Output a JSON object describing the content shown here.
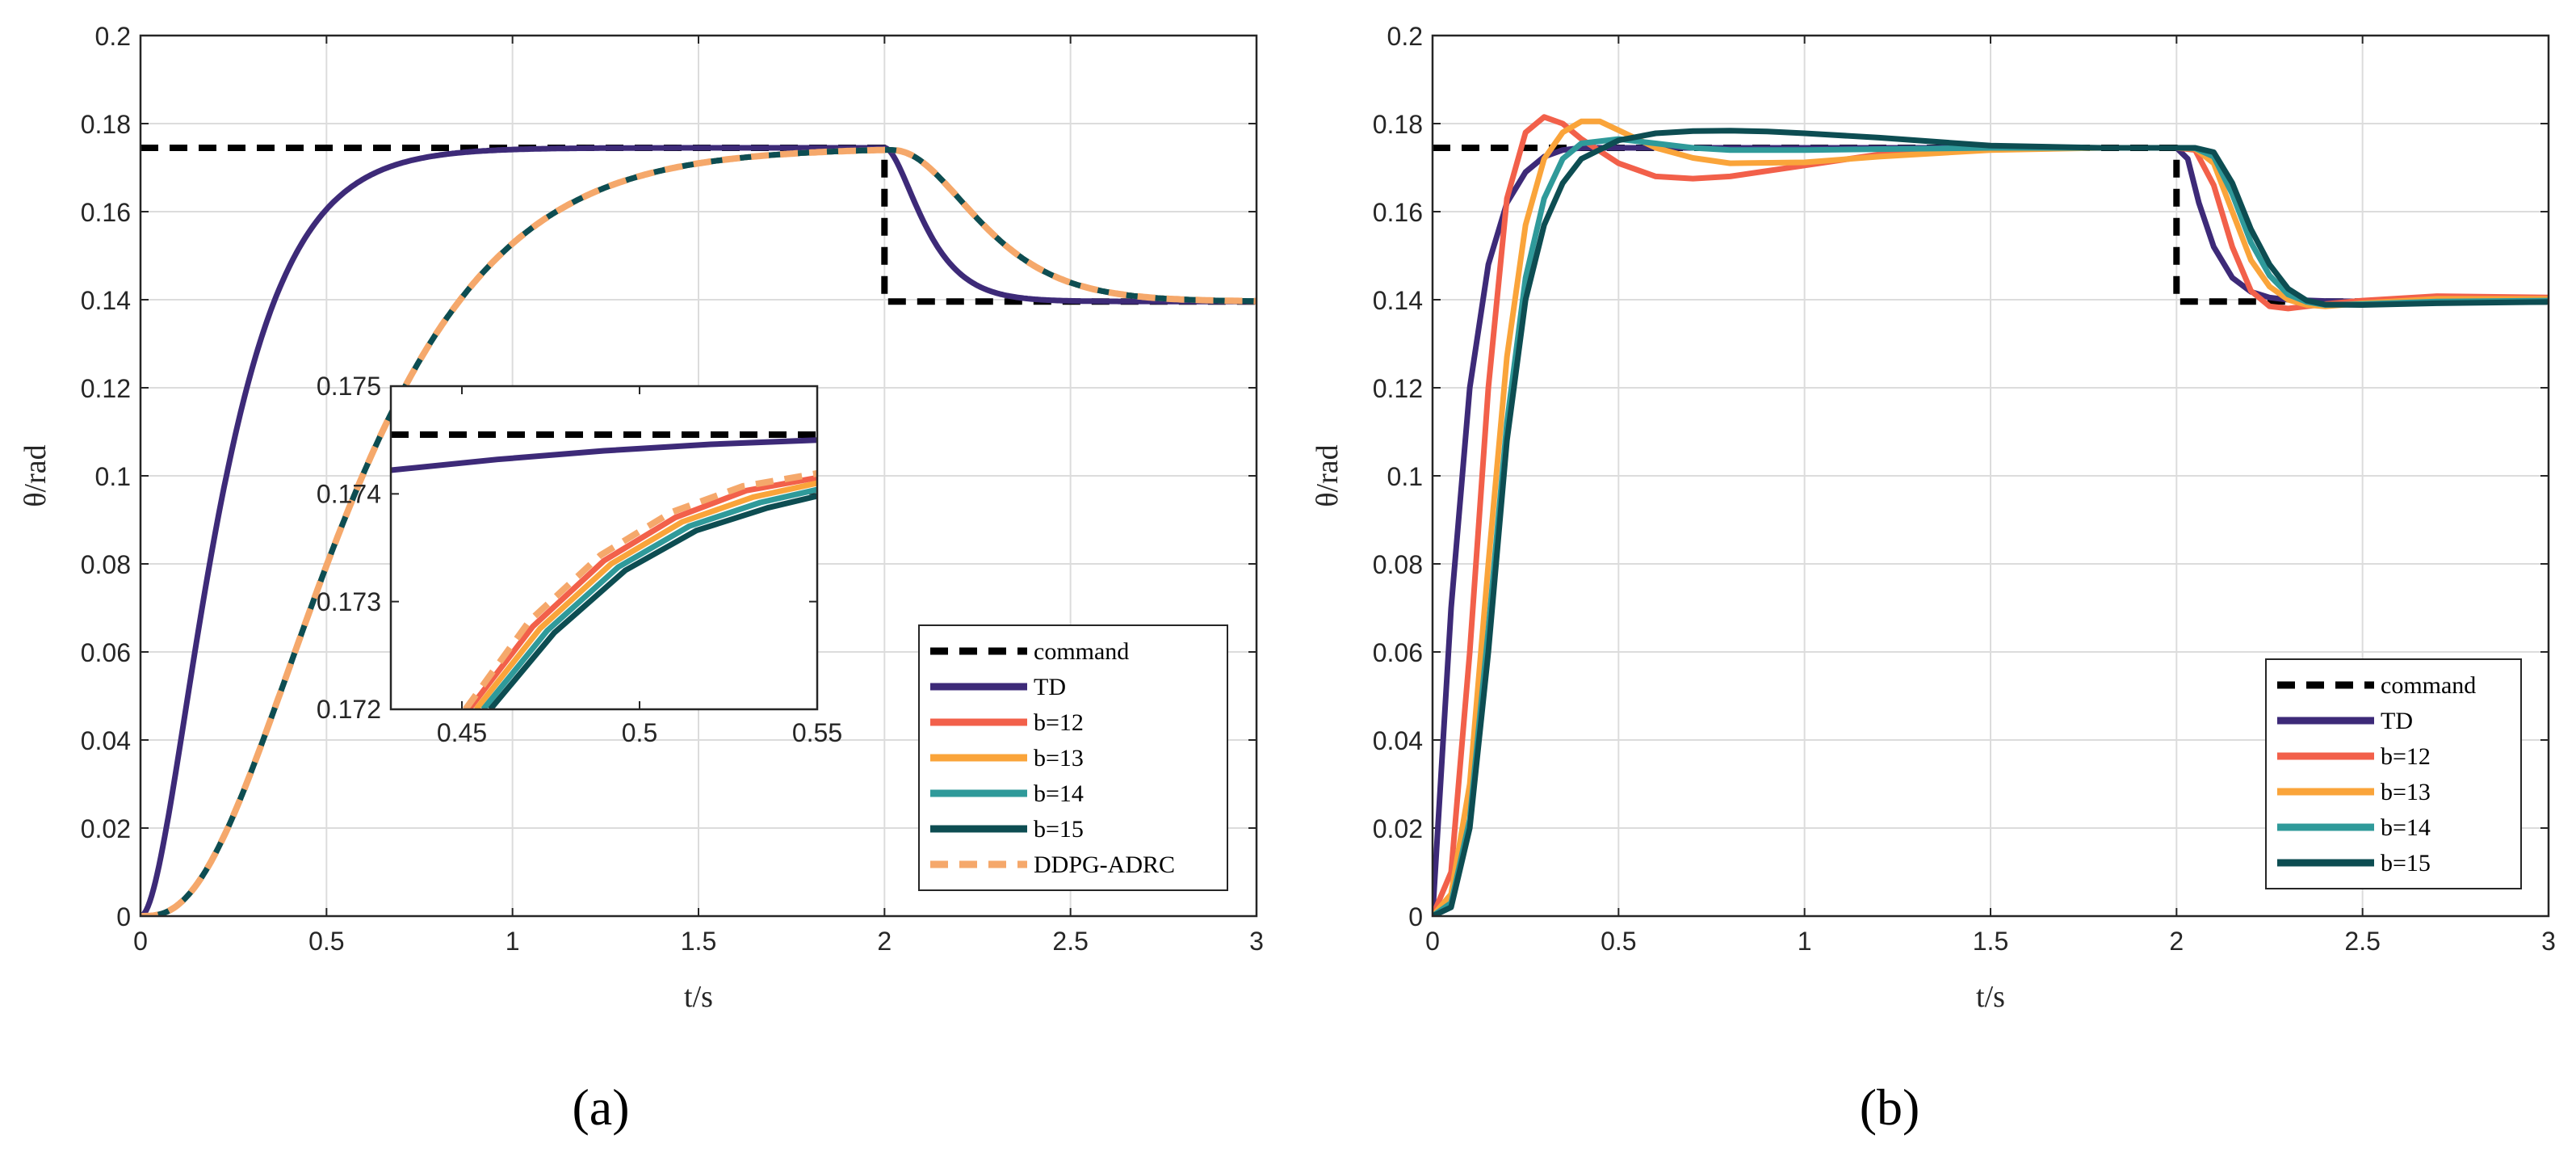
{
  "figure": {
    "panel_a_label": "(a)",
    "panel_b_label": "(b)"
  },
  "colors": {
    "command": "#000000",
    "TD": "#3d2a78",
    "b12": "#f2604a",
    "b13": "#faa43a",
    "b14": "#2f9a9a",
    "b15": "#0d4d52",
    "DDPG-ADRC": "#f5a86b"
  },
  "chart_data": [
    {
      "id": "a",
      "type": "line",
      "title": "",
      "xlabel": "t/s",
      "ylabel": "θ/rad",
      "xlim": [
        0,
        3
      ],
      "ylim": [
        0,
        0.2
      ],
      "xticks": [
        "0",
        "0.5",
        "1",
        "1.5",
        "2",
        "2.5",
        "3"
      ],
      "yticks": [
        "0",
        "0.02",
        "0.04",
        "0.06",
        "0.08",
        "0.1",
        "0.12",
        "0.14",
        "0.16",
        "0.18",
        "0.2"
      ],
      "grid": true,
      "legend": [
        "command",
        "TD",
        "b=12",
        "b=13",
        "b=14",
        "b=15",
        "DDPG-ADRC"
      ],
      "legend_position": "lower-right",
      "series": [
        {
          "name": "command",
          "style": "dashed",
          "color_key": "command",
          "x": [
            0,
            2,
            2,
            3
          ],
          "y": [
            0.1745,
            0.1745,
            0.1396,
            0.1396
          ]
        },
        {
          "name": "TD",
          "color_key": "TD",
          "model": "td",
          "t_rise": 0.12,
          "t_fall": 0.065,
          "fall_start": 2.0
        },
        {
          "name": "b=12",
          "color_key": "b12",
          "model": "smooth",
          "t_rise": 0.2,
          "t_fall": 0.1,
          "fall_start": 2.0
        },
        {
          "name": "b=13",
          "color_key": "b13",
          "model": "smooth",
          "t_rise": 0.2,
          "t_fall": 0.1,
          "fall_start": 2.0
        },
        {
          "name": "b=14",
          "color_key": "b14",
          "model": "smooth",
          "t_rise": 0.2,
          "t_fall": 0.1,
          "fall_start": 2.0
        },
        {
          "name": "b=15",
          "color_key": "b15",
          "model": "smooth",
          "t_rise": 0.2,
          "t_fall": 0.1,
          "fall_start": 2.0
        },
        {
          "name": "DDPG-ADRC",
          "style": "dashed",
          "color_key": "DDPG-ADRC",
          "model": "smooth",
          "t_rise": 0.2,
          "t_fall": 0.1,
          "fall_start": 2.0
        }
      ],
      "inset": {
        "xlim": [
          0.43,
          0.55
        ],
        "ylim": [
          0.172,
          0.175
        ],
        "xticks": [
          "0.45",
          "0.5",
          "0.55"
        ],
        "yticks": [
          "0.172",
          "0.173",
          "0.174",
          "0.175"
        ],
        "series": [
          {
            "name": "command",
            "style": "dashed",
            "color_key": "command",
            "x": [
              0.43,
              0.55
            ],
            "y": [
              0.17455,
              0.17455
            ]
          },
          {
            "name": "TD",
            "color_key": "TD",
            "x": [
              0.43,
              0.46,
              0.49,
              0.52,
              0.55
            ],
            "y": [
              0.17422,
              0.17432,
              0.1744,
              0.17446,
              0.1745
            ]
          },
          {
            "name": "b=12",
            "color_key": "b12",
            "x": [
              0.452,
              0.47,
              0.49,
              0.51,
              0.53,
              0.55
            ],
            "y": [
              0.172,
              0.17277,
              0.17338,
              0.17378,
              0.17403,
              0.17415
            ]
          },
          {
            "name": "b=13",
            "color_key": "b13",
            "x": [
              0.454,
              0.472,
              0.492,
              0.512,
              0.532,
              0.55
            ],
            "y": [
              0.172,
              0.17275,
              0.17335,
              0.17374,
              0.17397,
              0.1741
            ]
          },
          {
            "name": "b=14",
            "color_key": "b14",
            "x": [
              0.456,
              0.474,
              0.494,
              0.514,
              0.534,
              0.55
            ],
            "y": [
              0.172,
              0.17273,
              0.17332,
              0.1737,
              0.17392,
              0.17404
            ]
          },
          {
            "name": "b=15",
            "color_key": "b15",
            "x": [
              0.458,
              0.476,
              0.496,
              0.516,
              0.536,
              0.55
            ],
            "y": [
              0.172,
              0.17271,
              0.17329,
              0.17366,
              0.17387,
              0.17398
            ]
          },
          {
            "name": "DDPG-ADRC",
            "style": "dashed",
            "color_key": "DDPG-ADRC",
            "x": [
              0.451,
              0.469,
              0.489,
              0.509,
              0.529,
              0.55
            ],
            "y": [
              0.172,
              0.17282,
              0.17343,
              0.17383,
              0.17407,
              0.17419
            ]
          }
        ]
      }
    },
    {
      "id": "b",
      "type": "line",
      "title": "",
      "xlabel": "t/s",
      "ylabel": "θ/rad",
      "xlim": [
        0,
        3
      ],
      "ylim": [
        0,
        0.2
      ],
      "xticks": [
        "0",
        "0.5",
        "1",
        "1.5",
        "2",
        "2.5",
        "3"
      ],
      "yticks": [
        "0",
        "0.02",
        "0.04",
        "0.06",
        "0.08",
        "0.1",
        "0.12",
        "0.14",
        "0.16",
        "0.18",
        "0.2"
      ],
      "grid": true,
      "legend": [
        "command",
        "TD",
        "b=12",
        "b=13",
        "b=14",
        "b=15"
      ],
      "legend_position": "lower-right",
      "series": [
        {
          "name": "command",
          "style": "dashed",
          "color_key": "command",
          "x": [
            0,
            2,
            2,
            3
          ],
          "y": [
            0.1745,
            0.1745,
            0.1396,
            0.1396
          ]
        },
        {
          "name": "TD",
          "color_key": "TD",
          "x": [
            0,
            0.05,
            0.1,
            0.15,
            0.2,
            0.25,
            0.3,
            0.35,
            0.4,
            0.5,
            0.7,
            1,
            1.5,
            2,
            2.03,
            2.06,
            2.1,
            2.15,
            2.2,
            2.25,
            2.3,
            2.4,
            2.5,
            3
          ],
          "y": [
            0,
            0.07,
            0.12,
            0.148,
            0.162,
            0.169,
            0.1725,
            0.174,
            0.1745,
            0.1745,
            0.1745,
            0.1745,
            0.1745,
            0.1745,
            0.172,
            0.162,
            0.152,
            0.145,
            0.1418,
            0.1405,
            0.14,
            0.1397,
            0.1396,
            0.1396
          ]
        },
        {
          "name": "b=12",
          "color_key": "b12",
          "x": [
            0,
            0.05,
            0.1,
            0.15,
            0.2,
            0.25,
            0.3,
            0.35,
            0.4,
            0.5,
            0.6,
            0.7,
            0.8,
            1,
            1.2,
            1.5,
            1.8,
            2,
            2.05,
            2.1,
            2.15,
            2.2,
            2.25,
            2.3,
            2.35,
            2.4,
            2.5,
            2.7,
            3
          ],
          "y": [
            0,
            0.01,
            0.06,
            0.12,
            0.163,
            0.178,
            0.1815,
            0.18,
            0.1765,
            0.171,
            0.168,
            0.1675,
            0.168,
            0.1705,
            0.173,
            0.1745,
            0.1745,
            0.1745,
            0.174,
            0.166,
            0.152,
            0.142,
            0.1385,
            0.138,
            0.1385,
            0.139,
            0.1398,
            0.1408,
            0.1405
          ]
        },
        {
          "name": "b=13",
          "color_key": "b13",
          "x": [
            0,
            0.05,
            0.1,
            0.15,
            0.2,
            0.25,
            0.3,
            0.35,
            0.4,
            0.45,
            0.5,
            0.6,
            0.7,
            0.8,
            1,
            1.2,
            1.5,
            1.8,
            2,
            2.05,
            2.1,
            2.15,
            2.2,
            2.25,
            2.3,
            2.35,
            2.4,
            2.5,
            2.7,
            3
          ],
          "y": [
            0,
            0.005,
            0.03,
            0.08,
            0.127,
            0.157,
            0.172,
            0.178,
            0.1805,
            0.1805,
            0.1785,
            0.1745,
            0.1722,
            0.171,
            0.1712,
            0.1725,
            0.174,
            0.1745,
            0.1745,
            0.1743,
            0.171,
            0.16,
            0.149,
            0.143,
            0.14,
            0.1388,
            0.1385,
            0.1392,
            0.1402,
            0.1402
          ]
        },
        {
          "name": "b=14",
          "color_key": "b14",
          "x": [
            0,
            0.05,
            0.1,
            0.15,
            0.2,
            0.25,
            0.3,
            0.35,
            0.4,
            0.5,
            0.6,
            0.7,
            0.8,
            1,
            1.2,
            1.5,
            1.8,
            2,
            2.05,
            2.1,
            2.15,
            2.2,
            2.25,
            2.3,
            2.35,
            2.4,
            2.5,
            2.7,
            3
          ],
          "y": [
            0,
            0.003,
            0.022,
            0.065,
            0.112,
            0.145,
            0.163,
            0.172,
            0.1755,
            0.1765,
            0.1755,
            0.1745,
            0.174,
            0.174,
            0.1742,
            0.1745,
            0.1745,
            0.1745,
            0.1744,
            0.1725,
            0.164,
            0.153,
            0.1455,
            0.1412,
            0.1395,
            0.1388,
            0.139,
            0.1396,
            0.1398
          ]
        },
        {
          "name": "b=15",
          "color_key": "b15",
          "x": [
            0,
            0.05,
            0.1,
            0.15,
            0.2,
            0.25,
            0.3,
            0.35,
            0.4,
            0.5,
            0.6,
            0.7,
            0.8,
            0.9,
            1,
            1.2,
            1.5,
            1.8,
            2,
            2.05,
            2.1,
            2.15,
            2.2,
            2.25,
            2.3,
            2.35,
            2.4,
            2.5,
            2.7,
            3
          ],
          "y": [
            0,
            0.002,
            0.02,
            0.06,
            0.108,
            0.14,
            0.157,
            0.1665,
            0.172,
            0.1762,
            0.1778,
            0.1783,
            0.1784,
            0.1782,
            0.1778,
            0.1768,
            0.175,
            0.1745,
            0.1745,
            0.1745,
            0.1735,
            0.1665,
            0.156,
            0.148,
            0.1425,
            0.1398,
            0.1389,
            0.1388,
            0.1392,
            0.1395
          ]
        }
      ]
    }
  ]
}
